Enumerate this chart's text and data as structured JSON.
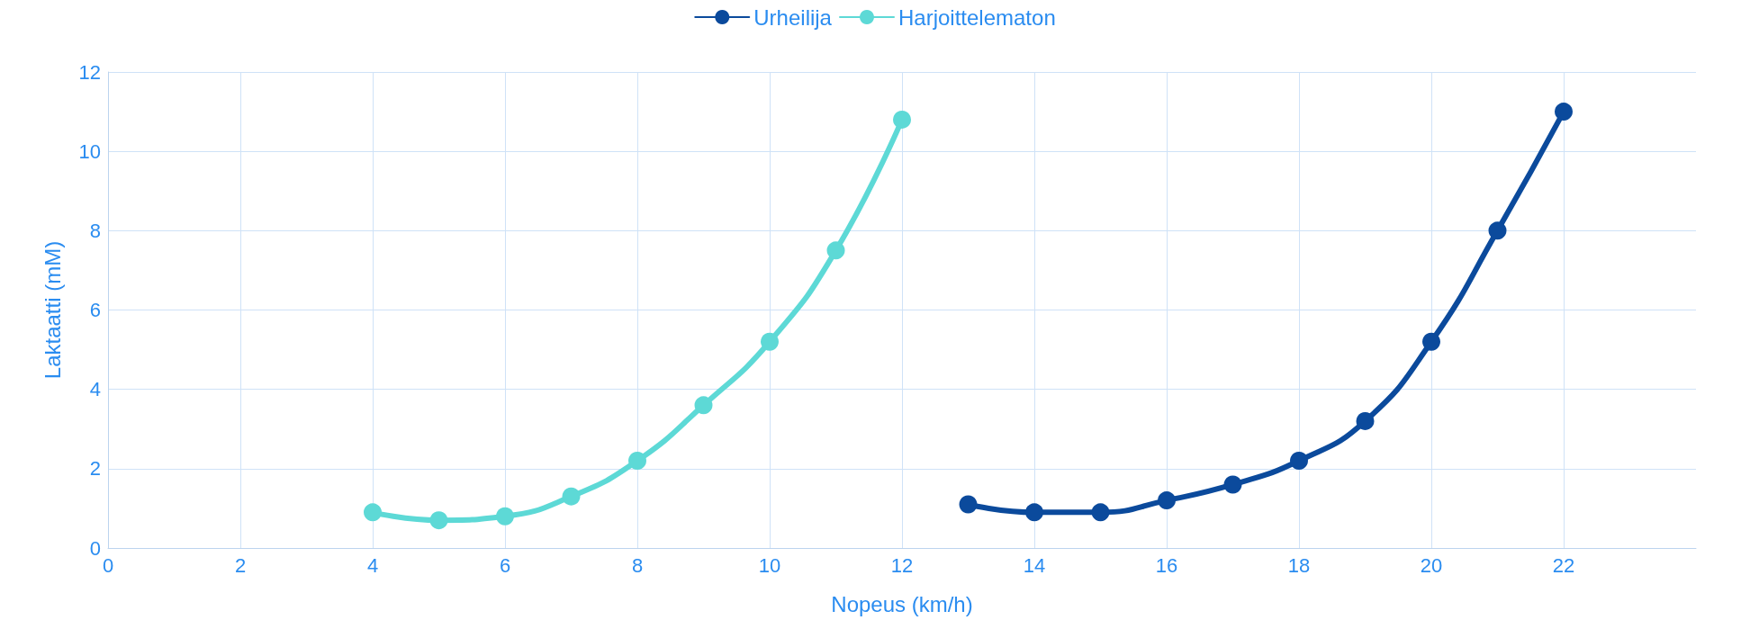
{
  "chart_data": {
    "type": "line",
    "xlabel": "Nopeus (km/h)",
    "ylabel": "Laktaatti (mM)",
    "series": [
      {
        "name": "Urheilija",
        "color": "#0b4a9c",
        "x": [
          13,
          14,
          15,
          16,
          17,
          18,
          19,
          20,
          21,
          22
        ],
        "values": [
          1.1,
          0.9,
          0.9,
          1.2,
          1.6,
          2.2,
          3.2,
          5.2,
          8.0,
          11.0
        ]
      },
      {
        "name": "Harjoittelematon",
        "color": "#5dd9d6",
        "x": [
          4,
          5,
          6,
          7,
          8,
          9,
          10,
          11,
          12
        ],
        "values": [
          0.9,
          0.7,
          0.8,
          1.3,
          2.2,
          3.6,
          5.2,
          7.5,
          10.8
        ]
      }
    ],
    "xlim": [
      0,
      24
    ],
    "xticks": [
      0,
      2,
      4,
      6,
      8,
      10,
      12,
      14,
      16,
      18,
      20,
      22
    ],
    "ylim": [
      0,
      12
    ],
    "yticks": [
      0,
      2,
      4,
      6,
      8,
      10,
      12
    ],
    "grid": true,
    "legend": "top",
    "marker": "circle",
    "line_style": "solid"
  }
}
